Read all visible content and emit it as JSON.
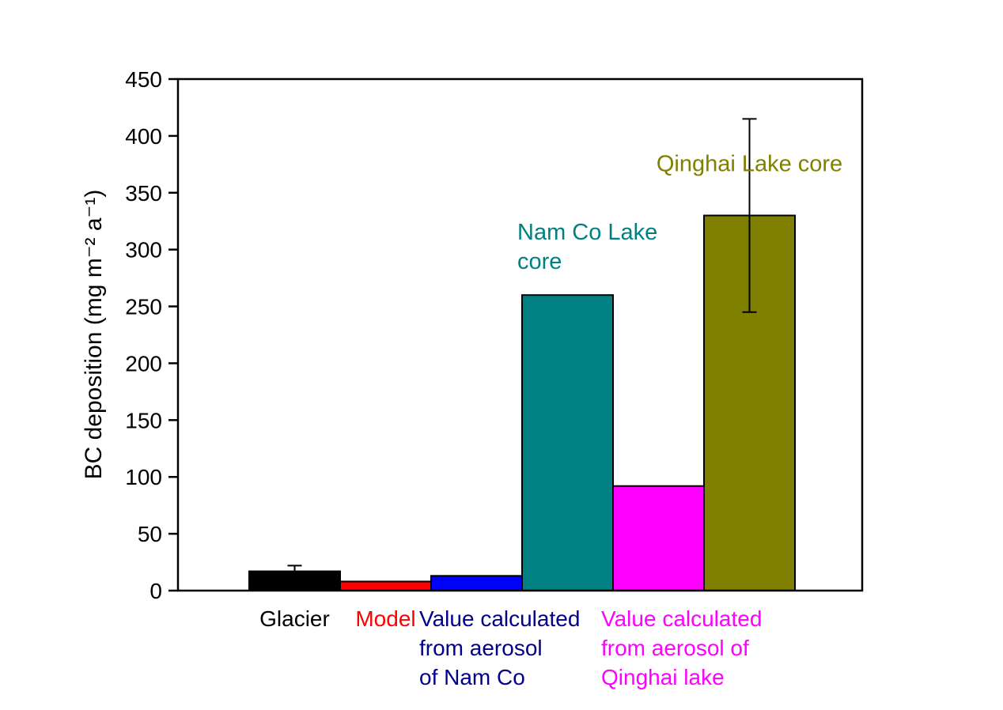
{
  "chart_data": {
    "type": "bar",
    "title": "",
    "xlabel": "",
    "ylabel": "BC deposition (mg m⁻² a⁻¹)",
    "ylim": [
      0,
      450
    ],
    "yticks": [
      0,
      50,
      100,
      150,
      200,
      250,
      300,
      350,
      400,
      450
    ],
    "grid": false,
    "legend_position": "none",
    "axis_color": "#000000",
    "background_color": "#ffffff",
    "bars": [
      {
        "id": "glacier",
        "value": 17,
        "error": 5,
        "color": "#000000",
        "label_lines": [
          "Glacier"
        ],
        "label_color": "#000000",
        "label_align": "center"
      },
      {
        "id": "model",
        "value": 8,
        "color": "#ff0000",
        "label_lines": [
          "Model"
        ],
        "label_color": "#ff0000",
        "label_align": "center"
      },
      {
        "id": "aerosol-nam-co",
        "value": 13,
        "color": "#0000ff",
        "label_lines": [
          "Value calculated",
          "from aerosol",
          "of Nam Co"
        ],
        "label_color": "#00008b",
        "label_align": "left"
      },
      {
        "id": "nam-co-lake-core",
        "value": 260,
        "color": "#008080",
        "label_lines": [],
        "label_color": "#008080",
        "label_align": "center"
      },
      {
        "id": "aerosol-qinghai",
        "value": 92,
        "color": "#ff00ff",
        "label_lines": [
          "Value calculated",
          "from aerosol of",
          "Qinghai lake"
        ],
        "label_color": "#ff00ff",
        "label_align": "left"
      },
      {
        "id": "qinghai-lake-core",
        "value": 330,
        "error": 85,
        "color": "#808000",
        "label_lines": [],
        "label_color": "#808000",
        "label_align": "center"
      }
    ],
    "annotations": [
      {
        "id": "nam-co-lake-core-label",
        "text_lines": [
          "Nam Co Lake",
          " core"
        ],
        "color": "#008080",
        "bar_index": 3,
        "y": 303,
        "align": "left"
      },
      {
        "id": "qinghai-lake-core-label",
        "text_lines": [
          "Qinghai Lake core"
        ],
        "color": "#808000",
        "bar_index": 5,
        "y": 376,
        "align": "center"
      }
    ]
  }
}
